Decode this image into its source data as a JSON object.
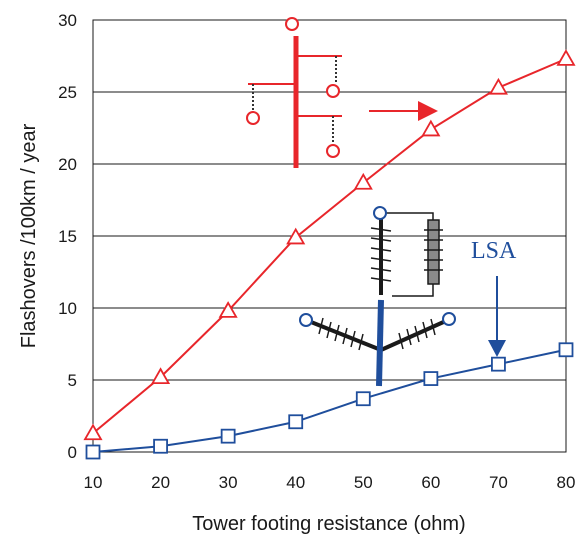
{
  "chart_data": {
    "type": "line",
    "xlabel": "Tower footing resistance (ohm)",
    "ylabel": "Flashovers /100km / year",
    "xlim": [
      10,
      80
    ],
    "ylim": [
      0,
      30
    ],
    "xticks": [
      10,
      20,
      30,
      40,
      50,
      60,
      70,
      80
    ],
    "yticks": [
      0,
      5,
      10,
      15,
      20,
      25,
      30
    ],
    "grid": "horizontal",
    "series": [
      {
        "marker": "triangle",
        "color": "#e8262b",
        "x": [
          10,
          20,
          30,
          40,
          50,
          60,
          70,
          80
        ],
        "y": [
          1.3,
          5.2,
          9.8,
          14.9,
          18.7,
          22.4,
          25.3,
          27.3
        ]
      },
      {
        "marker": "square",
        "color": "#1f4e9c",
        "x": [
          10,
          20,
          30,
          40,
          50,
          60,
          70,
          80
        ],
        "y": [
          0,
          0.4,
          1.1,
          2.1,
          3.7,
          5.1,
          6.1,
          7.1
        ]
      }
    ],
    "annotations": [
      {
        "text": "LSA",
        "color": "#1f4e9c",
        "points_to": "square series near x=70"
      }
    ]
  },
  "colors": {
    "red": "#e8262b",
    "blue": "#1f4e9c",
    "tower_dark": "#1a1a1a",
    "insulator_gray": "#8a8a8a"
  },
  "icons": {
    "top_sketch": "tower-arms-with-conductors-icon",
    "bottom_sketch": "tower-with-surge-arrester-icon"
  }
}
